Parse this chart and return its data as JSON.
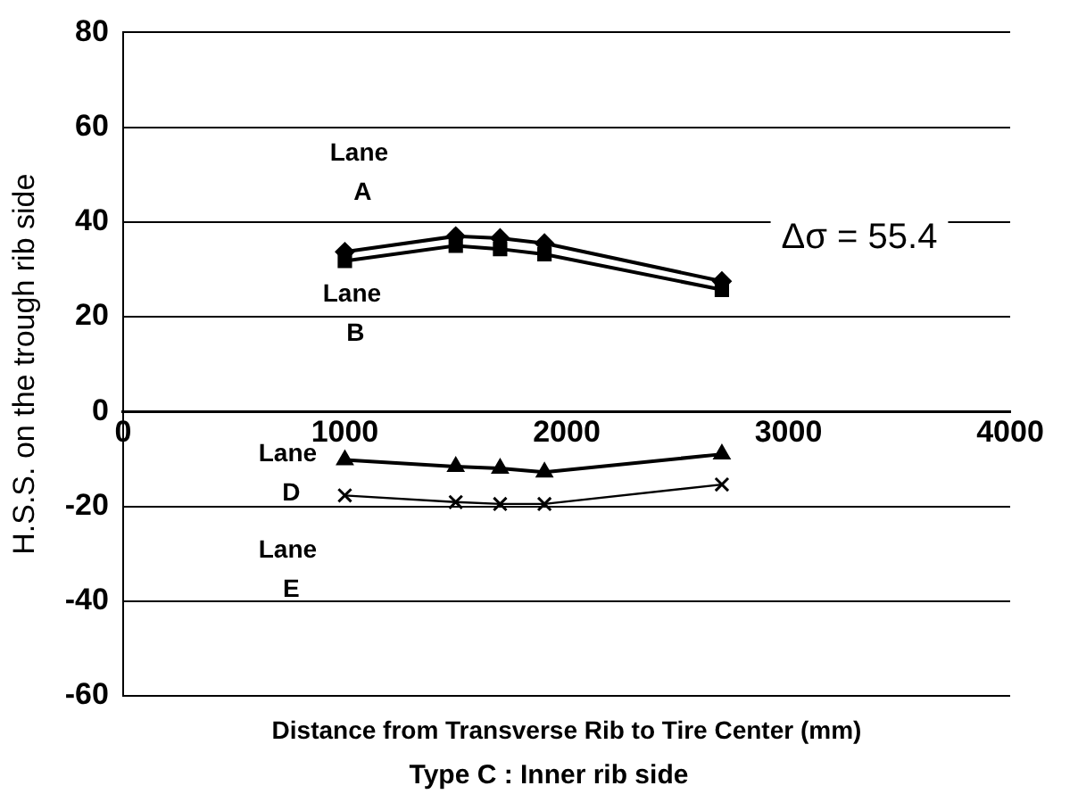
{
  "chart_data": {
    "type": "line",
    "title": "Type C : Inner rib side",
    "xlabel": "Distance from Transverse Rib to Tire Center (mm)",
    "ylabel": "H.S.S. on the trough rib side",
    "series": [
      {
        "name": "Lane A",
        "color": "#000000",
        "marker": "diamond",
        "x": [
          1000,
          1500,
          1700,
          1900,
          2700
        ],
        "values": [
          33.7,
          37,
          36.6,
          35.5,
          27.5
        ]
      },
      {
        "name": "Lane B",
        "color": "#000000",
        "marker": "square",
        "x": [
          1000,
          1500,
          1700,
          1900,
          2700
        ],
        "values": [
          31.8,
          35,
          34.3,
          33.2,
          25.7
        ]
      },
      {
        "name": "Lane D",
        "color": "#000000",
        "marker": "triangle",
        "x": [
          1000,
          1500,
          1700,
          1900,
          2700
        ],
        "values": [
          -10.2,
          -11.6,
          -12,
          -12.8,
          -9
        ]
      },
      {
        "name": "Lane E",
        "color": "#000000",
        "marker": "cross",
        "x": [
          1000,
          1500,
          1700,
          1900,
          2700
        ],
        "values": [
          -17.7,
          -19.1,
          -19.5,
          -19.5,
          -15.4
        ]
      }
    ],
    "annotations": [
      "Δσ = 55.4"
    ],
    "xlim": [
      0,
      4000
    ],
    "xticks": [
      0,
      1000,
      2000,
      3000,
      4000
    ],
    "ylim": [
      -60,
      80
    ],
    "yticks": [
      -60,
      -40,
      -20,
      0,
      20,
      40,
      60,
      80
    ],
    "grid": "y",
    "legend": false
  }
}
